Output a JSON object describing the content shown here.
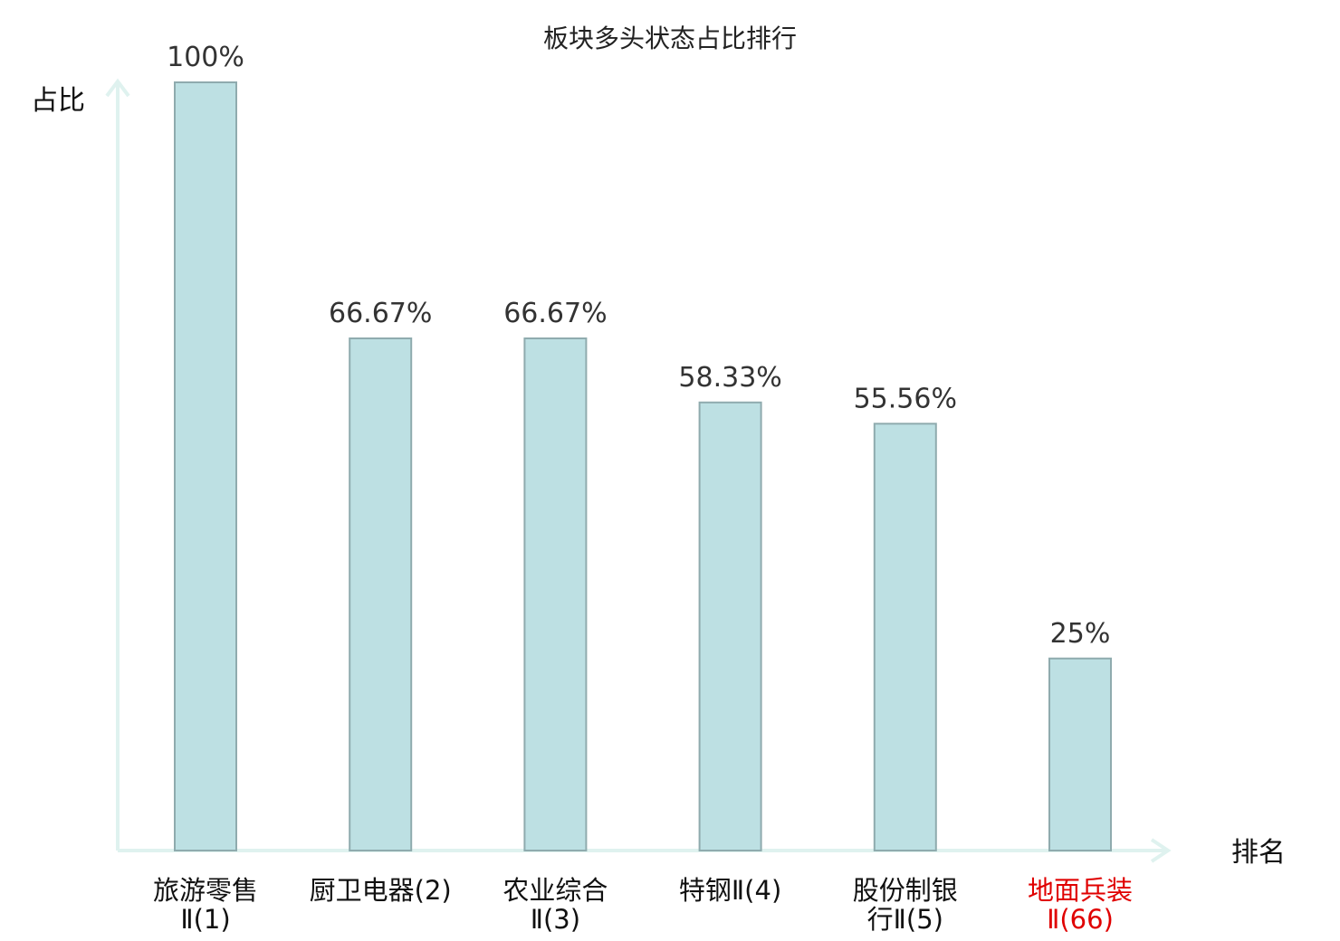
{
  "chart_data": {
    "type": "bar",
    "title": "板块多头状态占比排行",
    "ylabel": "占比",
    "xlabel": "排名",
    "ylim": [
      0,
      100
    ],
    "grid": false,
    "categories": [
      {
        "lines": [
          "旅游零售",
          "Ⅱ(1)"
        ],
        "highlight": false
      },
      {
        "lines": [
          "厨卫电器(2)"
        ],
        "highlight": false
      },
      {
        "lines": [
          "农业综合",
          "Ⅱ(3)"
        ],
        "highlight": false
      },
      {
        "lines": [
          "特钢Ⅱ(4)"
        ],
        "highlight": false
      },
      {
        "lines": [
          "股份制银",
          "行Ⅱ(5)"
        ],
        "highlight": false
      },
      {
        "lines": [
          "地面兵装",
          "Ⅱ(66)"
        ],
        "highlight": true
      }
    ],
    "values": [
      100,
      66.67,
      66.67,
      58.33,
      55.56,
      25
    ],
    "value_labels": [
      "100%",
      "66.67%",
      "66.67%",
      "58.33%",
      "55.56%",
      "25%"
    ],
    "colors": {
      "bar_fill": "#bde0e3",
      "bar_stroke": "#8fabae",
      "axis": "#dff2ef",
      "highlight_text": "#e00000"
    }
  }
}
